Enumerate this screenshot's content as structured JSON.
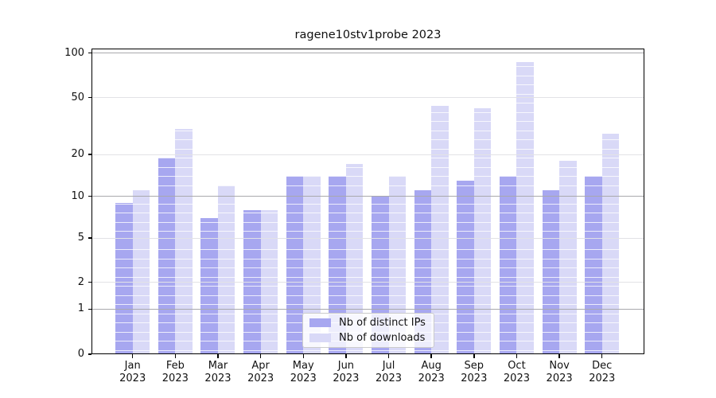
{
  "chart_data": {
    "type": "bar",
    "title": "ragene10stv1probe 2023",
    "categories": [
      "Jan 2023",
      "Feb 2023",
      "Mar 2023",
      "Apr 2023",
      "May 2023",
      "Jun 2023",
      "Jul 2023",
      "Aug 2023",
      "Sep 2023",
      "Oct 2023",
      "Nov 2023",
      "Dec 2023"
    ],
    "series": [
      {
        "name": "Nb of distinct IPs",
        "color": "#a7a7f0",
        "values": [
          9,
          19,
          7,
          8,
          14,
          14,
          10,
          11,
          13,
          14,
          11,
          14
        ]
      },
      {
        "name": "Nb of downloads",
        "color": "#d9d9f7",
        "values": [
          11,
          30,
          12,
          8,
          14,
          17,
          14,
          44,
          42,
          87,
          18,
          28
        ]
      }
    ],
    "xlabel": "",
    "ylabel": "",
    "y_ticks": [
      0,
      1,
      2,
      5,
      10,
      20,
      50,
      100
    ],
    "y_tick_labels": [
      "0",
      "1",
      "2",
      "5",
      "10",
      "20",
      "50",
      "100"
    ],
    "ylim": [
      0,
      100
    ],
    "y_scale": "log-like (ticks 1,2,5,10,20,50,100 plus 0 baseline)",
    "grid": true,
    "legend_position": "lower-center-inside"
  }
}
